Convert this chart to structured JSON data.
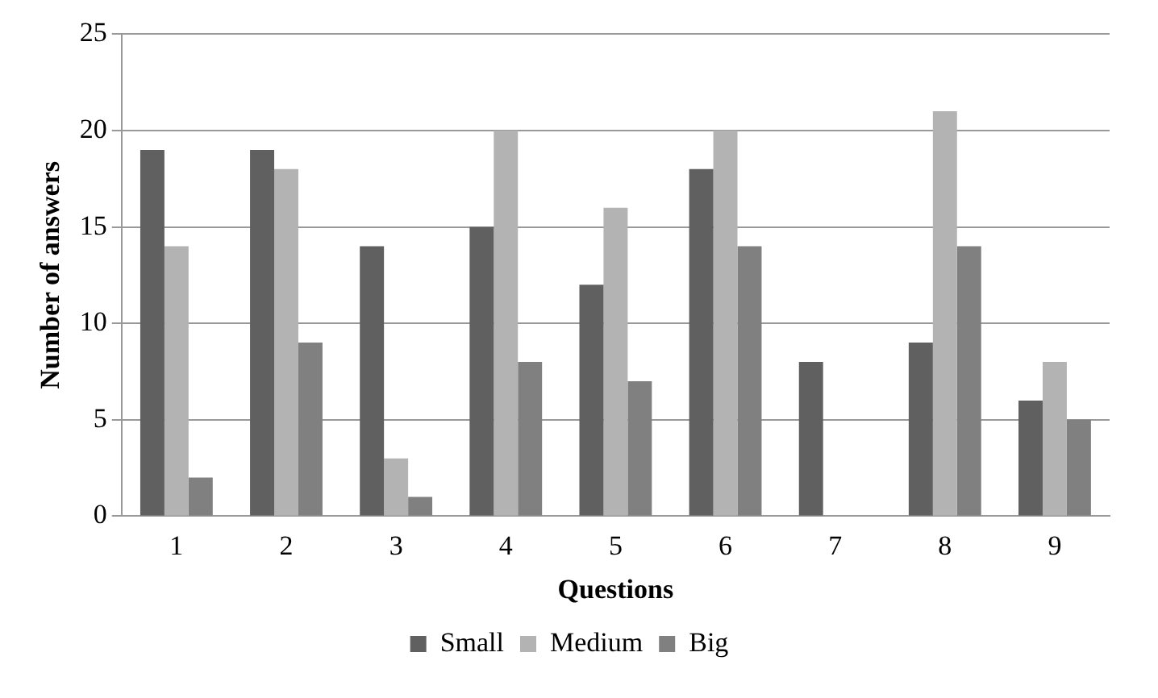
{
  "chart_data": {
    "type": "bar",
    "xlabel": "Questions",
    "ylabel": "Number of answers",
    "categories": [
      "1",
      "2",
      "3",
      "4",
      "5",
      "6",
      "7",
      "8",
      "9"
    ],
    "series": [
      {
        "name": "Small",
        "color": "#606060",
        "values": [
          19,
          19,
          14,
          15,
          12,
          18,
          8,
          9,
          6
        ]
      },
      {
        "name": "Medium",
        "color": "#b3b3b3",
        "values": [
          14,
          18,
          3,
          20,
          16,
          20,
          0,
          21,
          8
        ]
      },
      {
        "name": "Big",
        "color": "#808080",
        "values": [
          2,
          9,
          1,
          8,
          7,
          14,
          0,
          14,
          5
        ]
      }
    ],
    "ylim": [
      0,
      25
    ],
    "yticks": [
      0,
      5,
      10,
      15,
      20,
      25
    ],
    "grid": "y",
    "legend": "bottom"
  }
}
